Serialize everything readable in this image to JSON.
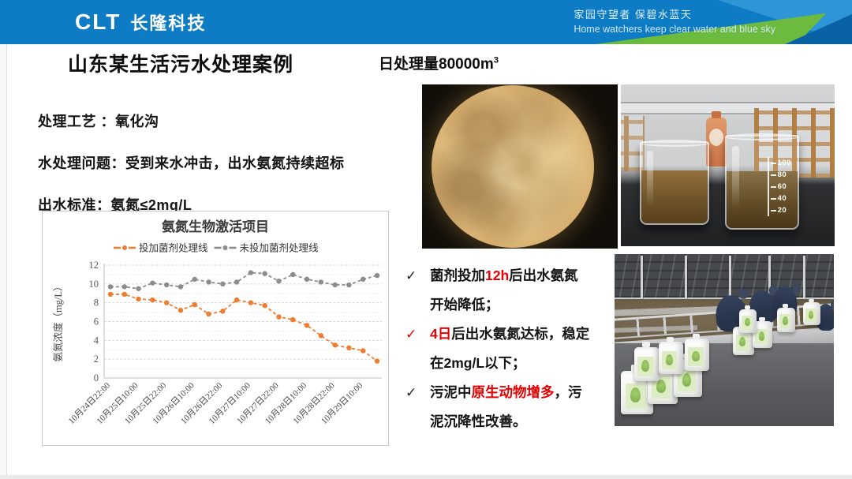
{
  "header": {
    "logo_clt": "CLT",
    "logo_name": "长隆科技",
    "slogan_cn": "家园守望者 保碧水蓝天",
    "slogan_en": "Home watchers keep clear water and blue sky",
    "colors": {
      "bar": "#0e7cc4",
      "light_triangle": "#2e95d6",
      "dark_triangle": "#0a61a4",
      "green_triangle": "#6cbb3e"
    }
  },
  "title": {
    "main": "山东某生活污水处理案例",
    "capacity_text": "日处理量80000m",
    "capacity_sup": "3"
  },
  "info": {
    "lines": [
      "处理工艺 ：氧化沟",
      "水处理问题：受到来水冲击，出水氨氮持续超标",
      "出水标准：氨氮≤2mg/L"
    ]
  },
  "chart_data": {
    "type": "line",
    "title": "氨氮生物激活项目",
    "ylabel": "氨氮浓度（mg/L）",
    "ylim": [
      0,
      12
    ],
    "ytick_step": 2,
    "grid": true,
    "legend_position": "top",
    "x_tick_every": 2,
    "x_tick_labels": [
      "10月24日22:00",
      "10月25日10:00",
      "10月25日22:00",
      "10月26日10:00",
      "10月26日22:00",
      "10月27日10:00",
      "10月27日22:00",
      "10月28日10:00",
      "10月28日22:00",
      "10月29日10:00"
    ],
    "series": [
      {
        "name": "投加菌剂处理线",
        "color": "#ED7D31",
        "values": [
          8.9,
          8.9,
          8.4,
          8.3,
          8.0,
          7.2,
          7.8,
          6.8,
          7.1,
          8.3,
          8.0,
          7.7,
          6.5,
          6.2,
          5.6,
          4.5,
          3.5,
          3.2,
          2.9,
          1.8
        ]
      },
      {
        "name": "未投加菌剂处理线",
        "color": "#8C8C8C",
        "values": [
          9.7,
          9.7,
          9.5,
          10.1,
          9.9,
          9.7,
          10.5,
          10.2,
          10.0,
          10.2,
          11.2,
          11.1,
          10.3,
          11.0,
          10.5,
          10.2,
          9.9,
          9.9,
          10.5,
          10.9
        ]
      }
    ]
  },
  "bullets": [
    {
      "check": "✓",
      "check_style": "dark",
      "segments": [
        [
          "菌剂投加",
          "dark"
        ],
        [
          "12h",
          "red"
        ],
        [
          "后出水氨氮开始降低；",
          "dark"
        ]
      ]
    },
    {
      "check": "✓",
      "check_style": "red",
      "segments": [
        [
          "4日",
          "red"
        ],
        [
          "后出水氨氮达标，稳定在2mg/L以下；",
          "dark"
        ]
      ]
    },
    {
      "check": "✓",
      "check_style": "dark",
      "segments": [
        [
          "污泥中",
          "dark"
        ],
        [
          "原生动物增多",
          "red"
        ],
        [
          "，污泥沉降性改善。",
          "dark"
        ]
      ]
    }
  ],
  "photos": {
    "beakers": {
      "scale": [
        "100",
        "80",
        "60",
        "40",
        "20"
      ]
    }
  }
}
